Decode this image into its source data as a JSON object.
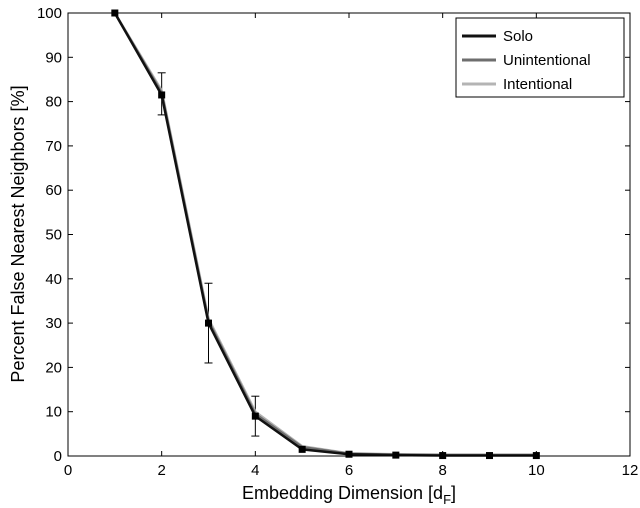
{
  "chart_data": {
    "type": "line",
    "title": "",
    "xlabel": "Embedding Dimension [d",
    "xlabel_sub": "F",
    "xlabel_close": "]",
    "ylabel": "Percent False Nearest Neighbors [%]",
    "xlim": [
      0,
      12
    ],
    "ylim": [
      0,
      100
    ],
    "xticks": [
      0,
      2,
      4,
      6,
      8,
      10,
      12
    ],
    "yticks": [
      0,
      10,
      20,
      30,
      40,
      50,
      60,
      70,
      80,
      90,
      100
    ],
    "grid": false,
    "legend_position": "top-right",
    "x": [
      1,
      2,
      3,
      4,
      5,
      6,
      7,
      8,
      9,
      10
    ],
    "series": [
      {
        "name": "Solo",
        "color": "#111111",
        "values": [
          100,
          81.5,
          30,
          9,
          1.5,
          0.4,
          0.2,
          0.1,
          0.1,
          0.1
        ]
      },
      {
        "name": "Unintentional",
        "color": "#6e6e6e",
        "values": [
          100,
          82,
          30.5,
          9.5,
          2,
          0.5,
          0.3,
          0.2,
          0.2,
          0.2
        ]
      },
      {
        "name": "Intentional",
        "color": "#b4b4b4",
        "values": [
          100,
          82.5,
          31,
          10,
          2.2,
          0.6,
          0.4,
          0.3,
          0.3,
          0.3
        ]
      }
    ],
    "error_bars": [
      {
        "x": 2,
        "low": 77,
        "high": 86.5
      },
      {
        "x": 3,
        "low": 21,
        "high": 39
      },
      {
        "x": 4,
        "low": 4.5,
        "high": 13.5
      }
    ]
  }
}
